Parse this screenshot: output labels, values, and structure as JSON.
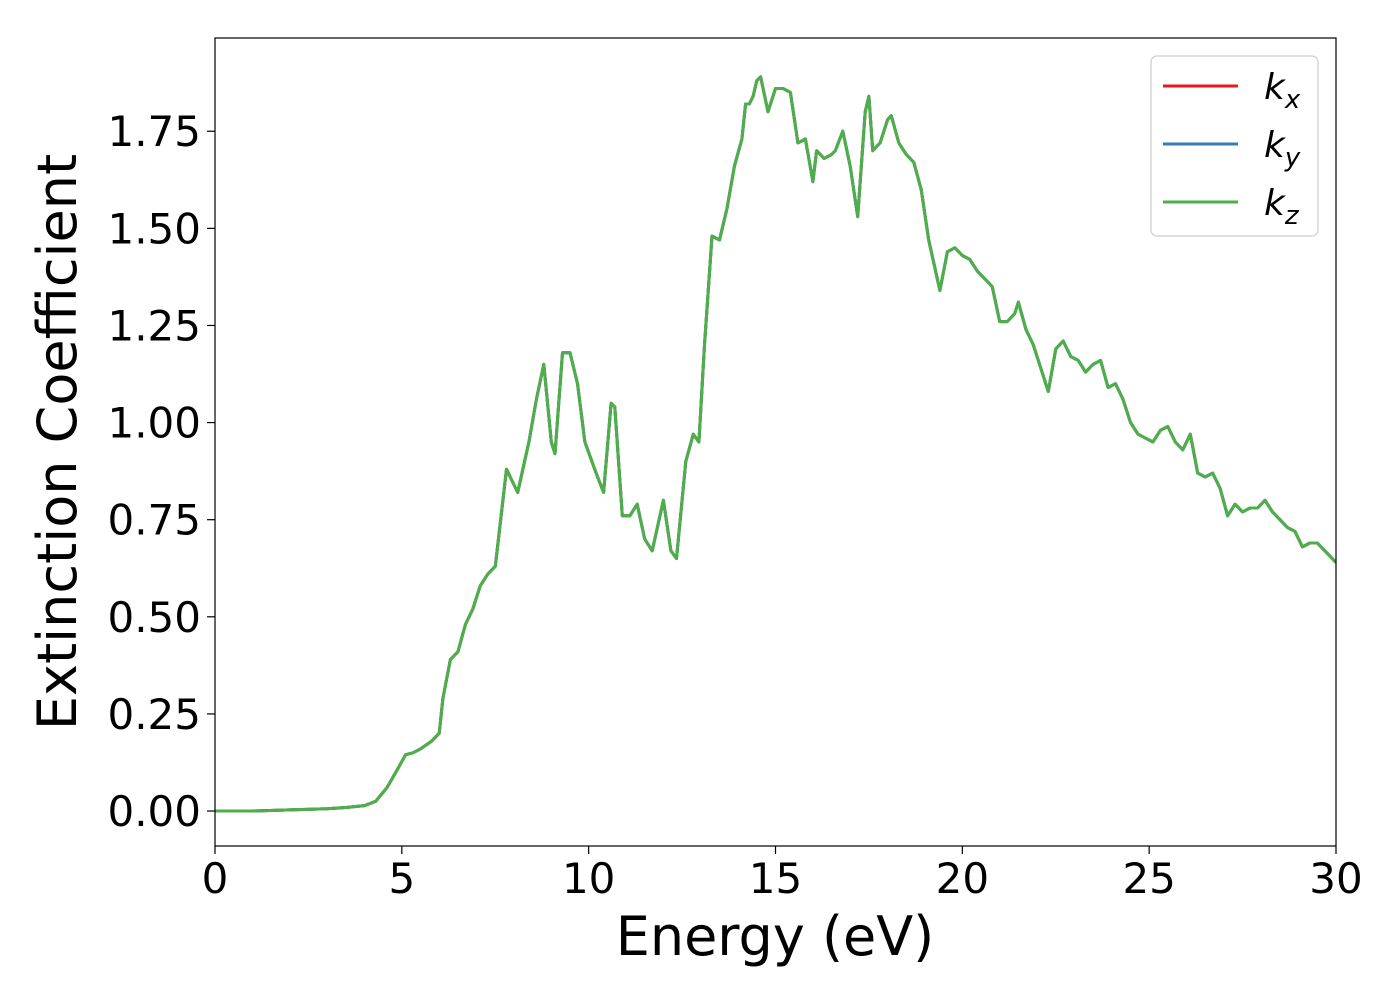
{
  "chart_data": {
    "type": "line",
    "xlabel": "Energy (eV)",
    "ylabel": "Extinction Coefficient",
    "xlim": [
      0,
      30
    ],
    "ylim": [
      -0.09,
      1.99
    ],
    "xticks": [
      0,
      5,
      10,
      15,
      20,
      25,
      30
    ],
    "xtick_labels": [
      "0",
      "5",
      "10",
      "15",
      "20",
      "25",
      "30"
    ],
    "yticks": [
      0.0,
      0.25,
      0.5,
      0.75,
      1.0,
      1.25,
      1.5,
      1.75
    ],
    "ytick_labels": [
      "0.00",
      "0.25",
      "0.50",
      "0.75",
      "1.00",
      "1.25",
      "1.50",
      "1.75"
    ],
    "grid": false,
    "legend_position": "top-right",
    "x": [
      0,
      1,
      2,
      3,
      3.5,
      4,
      4.3,
      4.6,
      4.9,
      5.1,
      5.3,
      5.5,
      5.8,
      6.0,
      6.1,
      6.3,
      6.5,
      6.7,
      6.9,
      7.1,
      7.3,
      7.5,
      7.8,
      8.1,
      8.4,
      8.6,
      8.8,
      9.0,
      9.1,
      9.3,
      9.5,
      9.7,
      9.9,
      10.2,
      10.4,
      10.6,
      10.7,
      10.9,
      11.1,
      11.3,
      11.5,
      11.7,
      12.0,
      12.2,
      12.35,
      12.6,
      12.8,
      12.95,
      13.1,
      13.3,
      13.5,
      13.7,
      13.9,
      14.1,
      14.2,
      14.3,
      14.4,
      14.5,
      14.6,
      14.8,
      15.0,
      15.2,
      15.4,
      15.6,
      15.8,
      16.0,
      16.1,
      16.3,
      16.5,
      16.6,
      16.8,
      17.0,
      17.2,
      17.4,
      17.5,
      17.6,
      17.8,
      18.0,
      18.1,
      18.3,
      18.5,
      18.7,
      18.9,
      19.1,
      19.4,
      19.6,
      19.8,
      20.0,
      20.2,
      20.4,
      20.6,
      20.8,
      21.0,
      21.2,
      21.4,
      21.5,
      21.7,
      21.9,
      22.1,
      22.3,
      22.5,
      22.7,
      22.9,
      23.1,
      23.3,
      23.5,
      23.7,
      23.9,
      24.1,
      24.3,
      24.5,
      24.7,
      24.9,
      25.1,
      25.3,
      25.5,
      25.7,
      25.9,
      26.1,
      26.3,
      26.5,
      26.7,
      26.9,
      27.1,
      27.3,
      27.5,
      27.7,
      27.9,
      28.1,
      28.3,
      28.5,
      28.7,
      28.9,
      29.1,
      29.3,
      29.5,
      29.7,
      30.0
    ],
    "y": [
      0.0,
      0.0,
      0.003,
      0.006,
      0.009,
      0.014,
      0.025,
      0.06,
      0.11,
      0.145,
      0.15,
      0.16,
      0.18,
      0.2,
      0.29,
      0.39,
      0.41,
      0.48,
      0.52,
      0.58,
      0.61,
      0.63,
      0.88,
      0.82,
      0.95,
      1.06,
      1.15,
      0.95,
      0.92,
      1.18,
      1.18,
      1.1,
      0.95,
      0.87,
      0.82,
      1.05,
      1.04,
      0.76,
      0.76,
      0.79,
      0.7,
      0.67,
      0.8,
      0.67,
      0.65,
      0.9,
      0.97,
      0.95,
      1.2,
      1.48,
      1.47,
      1.55,
      1.66,
      1.73,
      1.82,
      1.82,
      1.84,
      1.88,
      1.89,
      1.8,
      1.86,
      1.86,
      1.85,
      1.72,
      1.73,
      1.62,
      1.7,
      1.68,
      1.69,
      1.7,
      1.75,
      1.66,
      1.53,
      1.8,
      1.84,
      1.7,
      1.72,
      1.78,
      1.79,
      1.72,
      1.69,
      1.67,
      1.6,
      1.47,
      1.34,
      1.44,
      1.45,
      1.43,
      1.42,
      1.39,
      1.37,
      1.35,
      1.26,
      1.26,
      1.28,
      1.31,
      1.24,
      1.2,
      1.14,
      1.08,
      1.19,
      1.21,
      1.17,
      1.16,
      1.13,
      1.15,
      1.16,
      1.09,
      1.1,
      1.06,
      1.0,
      0.97,
      0.96,
      0.95,
      0.98,
      0.99,
      0.95,
      0.93,
      0.97,
      0.87,
      0.86,
      0.87,
      0.83,
      0.76,
      0.79,
      0.77,
      0.78,
      0.78,
      0.8,
      0.77,
      0.75,
      0.73,
      0.72,
      0.68,
      0.69,
      0.69,
      0.67,
      0.64
    ],
    "series": [
      {
        "name": "k_x",
        "legend_base": "k",
        "legend_sub": "x",
        "color": "#e41a1c",
        "same_values_as": "y"
      },
      {
        "name": "k_y",
        "legend_base": "k",
        "legend_sub": "y",
        "color": "#377eb8",
        "same_values_as": "y"
      },
      {
        "name": "k_z",
        "legend_base": "k",
        "legend_sub": "z",
        "color": "#4daf4a",
        "same_values_as": "y"
      }
    ]
  }
}
